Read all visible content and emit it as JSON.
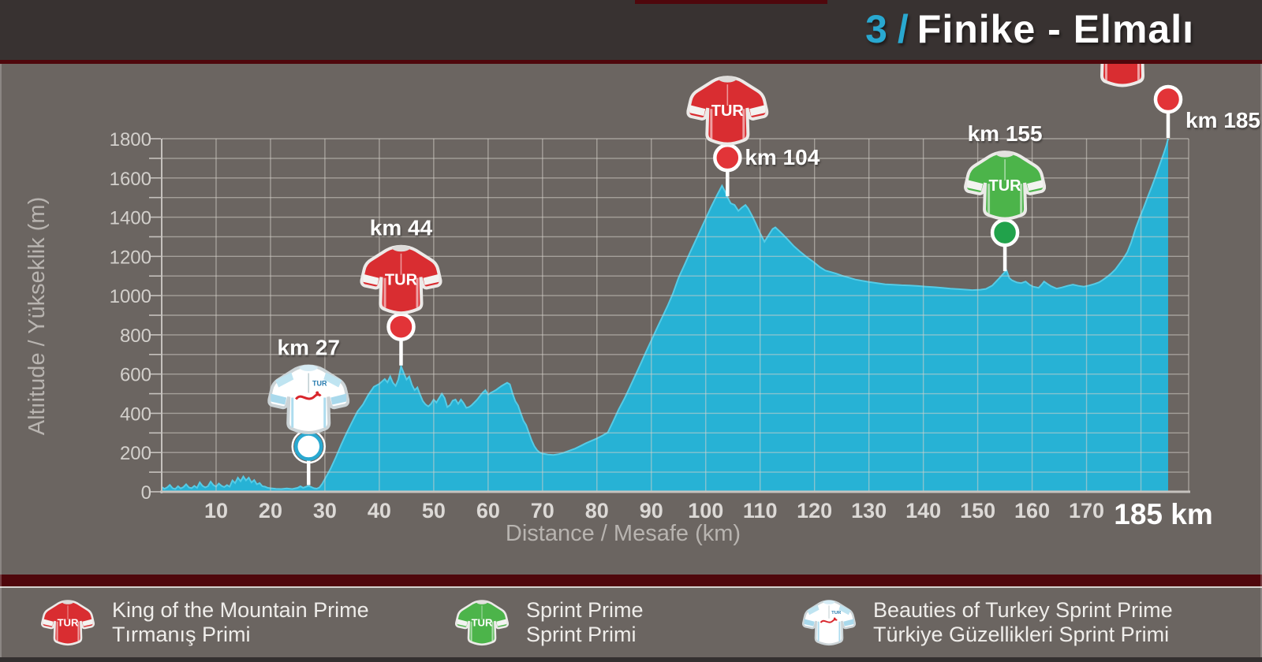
{
  "header": {
    "stage_number": "3",
    "separator": "/",
    "title": "Finike - Elmalı"
  },
  "chart_data": {
    "type": "area",
    "xlabel": "Distance / Mesafe (km)",
    "ylabel": "Altıitude / Yükseklik (m)",
    "x_ticks": [
      10,
      20,
      30,
      40,
      50,
      60,
      70,
      80,
      90,
      100,
      110,
      120,
      130,
      140,
      150,
      160,
      170
    ],
    "x_end_label": "185 km",
    "y_ticks": [
      0,
      200,
      400,
      600,
      800,
      1000,
      1200,
      1400,
      1600,
      1800
    ],
    "xlim": [
      0,
      188.5
    ],
    "ylim": [
      0,
      1800
    ],
    "grid_step_x_km": 10,
    "grid_step_y_m": 100,
    "total_distance_km": 185,
    "profile": [
      [
        0,
        25
      ],
      [
        0.5,
        15
      ],
      [
        1,
        22
      ],
      [
        1.5,
        35
      ],
      [
        2,
        18
      ],
      [
        2.5,
        14
      ],
      [
        3,
        28
      ],
      [
        3.5,
        17
      ],
      [
        4,
        24
      ],
      [
        4.5,
        38
      ],
      [
        5,
        22
      ],
      [
        5.5,
        18
      ],
      [
        6,
        30
      ],
      [
        6.5,
        20
      ],
      [
        7,
        48
      ],
      [
        7.5,
        30
      ],
      [
        8,
        22
      ],
      [
        8.5,
        28
      ],
      [
        9,
        52
      ],
      [
        9.5,
        34
      ],
      [
        10,
        26
      ],
      [
        10.5,
        42
      ],
      [
        11,
        30
      ],
      [
        11.5,
        24
      ],
      [
        12,
        34
      ],
      [
        12.5,
        26
      ],
      [
        13,
        58
      ],
      [
        13.5,
        44
      ],
      [
        14,
        72
      ],
      [
        14.5,
        54
      ],
      [
        15,
        78
      ],
      [
        15.5,
        58
      ],
      [
        16,
        72
      ],
      [
        16.5,
        48
      ],
      [
        17,
        60
      ],
      [
        17.5,
        38
      ],
      [
        18,
        44
      ],
      [
        18.5,
        28
      ],
      [
        19,
        26
      ],
      [
        19.5,
        20
      ],
      [
        20,
        18
      ],
      [
        21,
        15
      ],
      [
        22,
        14
      ],
      [
        23,
        17
      ],
      [
        24,
        14
      ],
      [
        25,
        20
      ],
      [
        25.5,
        28
      ],
      [
        26,
        20
      ],
      [
        27,
        30
      ],
      [
        27.5,
        24
      ],
      [
        28,
        18
      ],
      [
        28.5,
        16
      ],
      [
        29,
        22
      ],
      [
        29.5,
        40
      ],
      [
        30,
        65
      ],
      [
        31,
        115
      ],
      [
        32,
        175
      ],
      [
        33,
        240
      ],
      [
        34,
        300
      ],
      [
        35,
        355
      ],
      [
        36,
        410
      ],
      [
        37,
        445
      ],
      [
        38,
        495
      ],
      [
        39,
        535
      ],
      [
        40,
        550
      ],
      [
        41,
        575
      ],
      [
        41.5,
        558
      ],
      [
        42,
        588
      ],
      [
        42.5,
        556
      ],
      [
        43,
        540
      ],
      [
        43.5,
        572
      ],
      [
        44,
        640
      ],
      [
        44.5,
        605
      ],
      [
        45,
        572
      ],
      [
        45.5,
        588
      ],
      [
        46,
        545
      ],
      [
        46.5,
        518
      ],
      [
        47,
        532
      ],
      [
        47.5,
        495
      ],
      [
        48,
        462
      ],
      [
        48.5,
        445
      ],
      [
        49,
        435
      ],
      [
        49.5,
        448
      ],
      [
        50,
        470
      ],
      [
        50.5,
        455
      ],
      [
        51,
        478
      ],
      [
        51.5,
        500
      ],
      [
        52,
        478
      ],
      [
        52.5,
        432
      ],
      [
        53,
        442
      ],
      [
        53.5,
        465
      ],
      [
        54,
        470
      ],
      [
        54.5,
        448
      ],
      [
        55,
        470
      ],
      [
        55.5,
        452
      ],
      [
        56,
        428
      ],
      [
        56.5,
        432
      ],
      [
        57,
        442
      ],
      [
        57.5,
        456
      ],
      [
        58,
        470
      ],
      [
        58.5,
        488
      ],
      [
        59,
        505
      ],
      [
        59.5,
        518
      ],
      [
        60,
        495
      ],
      [
        60.5,
        505
      ],
      [
        61,
        512
      ],
      [
        61.5,
        520
      ],
      [
        62,
        530
      ],
      [
        62.5,
        540
      ],
      [
        63,
        548
      ],
      [
        63.5,
        556
      ],
      [
        64,
        548
      ],
      [
        64.5,
        500
      ],
      [
        65,
        462
      ],
      [
        65.5,
        440
      ],
      [
        66,
        400
      ],
      [
        66.5,
        362
      ],
      [
        67,
        340
      ],
      [
        67.5,
        300
      ],
      [
        68,
        262
      ],
      [
        68.5,
        232
      ],
      [
        69,
        212
      ],
      [
        69.5,
        200
      ],
      [
        70,
        195
      ],
      [
        71,
        190
      ],
      [
        72,
        188
      ],
      [
        73,
        192
      ],
      [
        74,
        200
      ],
      [
        75,
        210
      ],
      [
        76,
        220
      ],
      [
        77,
        234
      ],
      [
        78,
        248
      ],
      [
        79,
        260
      ],
      [
        80,
        272
      ],
      [
        81,
        286
      ],
      [
        82,
        302
      ],
      [
        83,
        360
      ],
      [
        84,
        420
      ],
      [
        85,
        472
      ],
      [
        86,
        530
      ],
      [
        87,
        590
      ],
      [
        88,
        650
      ],
      [
        89,
        712
      ],
      [
        90,
        772
      ],
      [
        91,
        832
      ],
      [
        92,
        890
      ],
      [
        93,
        948
      ],
      [
        94,
        1012
      ],
      [
        95,
        1090
      ],
      [
        96,
        1150
      ],
      [
        97,
        1212
      ],
      [
        98,
        1272
      ],
      [
        99,
        1332
      ],
      [
        100,
        1392
      ],
      [
        101,
        1452
      ],
      [
        102,
        1508
      ],
      [
        103,
        1560
      ],
      [
        103.6,
        1528
      ],
      [
        104,
        1502
      ],
      [
        104.6,
        1470
      ],
      [
        105.3,
        1462
      ],
      [
        106,
        1432
      ],
      [
        106.6,
        1448
      ],
      [
        107.3,
        1462
      ],
      [
        107.8,
        1445
      ],
      [
        108.5,
        1408
      ],
      [
        109.2,
        1368
      ],
      [
        110,
        1318
      ],
      [
        110.8,
        1275
      ],
      [
        111.5,
        1305
      ],
      [
        112.3,
        1340
      ],
      [
        112.8,
        1348
      ],
      [
        113.5,
        1330
      ],
      [
        114.3,
        1308
      ],
      [
        115.2,
        1282
      ],
      [
        116.2,
        1252
      ],
      [
        117.3,
        1225
      ],
      [
        118.5,
        1198
      ],
      [
        119.8,
        1172
      ],
      [
        121,
        1145
      ],
      [
        122,
        1128
      ],
      [
        123,
        1120
      ],
      [
        124,
        1112
      ],
      [
        125,
        1102
      ],
      [
        126.3,
        1092
      ],
      [
        127.5,
        1082
      ],
      [
        128.7,
        1076
      ],
      [
        130,
        1070
      ],
      [
        131.5,
        1064
      ],
      [
        133,
        1058
      ],
      [
        134.5,
        1056
      ],
      [
        136,
        1053
      ],
      [
        137.5,
        1052
      ],
      [
        139,
        1049
      ],
      [
        140.5,
        1046
      ],
      [
        142,
        1043
      ],
      [
        143.5,
        1040
      ],
      [
        145,
        1036
      ],
      [
        146.5,
        1033
      ],
      [
        148,
        1030
      ],
      [
        149,
        1028
      ],
      [
        150.5,
        1030
      ],
      [
        151.5,
        1034
      ],
      [
        152.7,
        1052
      ],
      [
        154,
        1090
      ],
      [
        154.9,
        1118
      ],
      [
        155.3,
        1128
      ],
      [
        155.8,
        1090
      ],
      [
        156.3,
        1078
      ],
      [
        157.2,
        1067
      ],
      [
        158,
        1064
      ],
      [
        158.8,
        1072
      ],
      [
        159.5,
        1056
      ],
      [
        160.2,
        1046
      ],
      [
        161.2,
        1040
      ],
      [
        161.8,
        1058
      ],
      [
        162.2,
        1072
      ],
      [
        162.8,
        1060
      ],
      [
        163.5,
        1048
      ],
      [
        164.5,
        1036
      ],
      [
        165.5,
        1042
      ],
      [
        166.5,
        1050
      ],
      [
        167.5,
        1056
      ],
      [
        168.5,
        1050
      ],
      [
        169.5,
        1046
      ],
      [
        170.5,
        1052
      ],
      [
        171.5,
        1060
      ],
      [
        172.3,
        1068
      ],
      [
        173,
        1080
      ],
      [
        173.8,
        1096
      ],
      [
        174.5,
        1112
      ],
      [
        175.3,
        1134
      ],
      [
        176,
        1160
      ],
      [
        176.8,
        1190
      ],
      [
        177.5,
        1222
      ],
      [
        178.2,
        1270
      ],
      [
        179,
        1340
      ],
      [
        179.8,
        1400
      ],
      [
        180.5,
        1448
      ],
      [
        181.2,
        1500
      ],
      [
        182,
        1556
      ],
      [
        182.8,
        1615
      ],
      [
        183.5,
        1672
      ],
      [
        184.2,
        1726
      ],
      [
        184.7,
        1768
      ],
      [
        185,
        1800
      ]
    ],
    "markers": [
      {
        "label": "km 27",
        "km": 27,
        "jersey": "white",
        "dot_color": "#ffffff",
        "dot_ring": "#29a8d0",
        "label_pos": "above"
      },
      {
        "label": "km 44",
        "km": 44,
        "jersey": "red",
        "dot_color": "#e23438",
        "dot_ring": "#ffffff",
        "label_pos": "above"
      },
      {
        "label": "km 104",
        "km": 104,
        "jersey": "red",
        "dot_color": "#e23438",
        "dot_ring": "#ffffff",
        "label_pos": "right",
        "label_dy": 9
      },
      {
        "label": "km 155",
        "km": 155,
        "jersey": "green",
        "dot_color": "#21a24b",
        "dot_ring": "#ffffff",
        "label_pos": "above"
      },
      {
        "label": "km 185",
        "km": 185,
        "jersey": "red",
        "dot_color": "#e23438",
        "dot_ring": "#ffffff",
        "label_pos": "right",
        "label_dy": 36,
        "jersey_dx": -58
      }
    ]
  },
  "legend": {
    "items": [
      {
        "jersey": "red",
        "line1": "King of the Mountain Prime",
        "line2": "Tırmanış Primi"
      },
      {
        "jersey": "green",
        "line1": "Sprint Prime",
        "line2": "Sprint Primi"
      },
      {
        "jersey": "white",
        "line1": "Beauties of Turkey Sprint Prime",
        "line2": "Türkiye Güzellikleri Sprint Primi"
      }
    ]
  },
  "colors": {
    "area_blue": "#27b2d5",
    "area_edge": "#55cbe6",
    "accent_cyan": "#29a8d0",
    "dark_red": "#4f070c",
    "header_bg": "#383231",
    "chart_bg": "#6b6561",
    "grid_line": "rgba(213,209,203,0.55)",
    "red_jersey": "#d92d31",
    "green_jersey": "#4cb44a",
    "white_jersey": "#ffffff"
  }
}
